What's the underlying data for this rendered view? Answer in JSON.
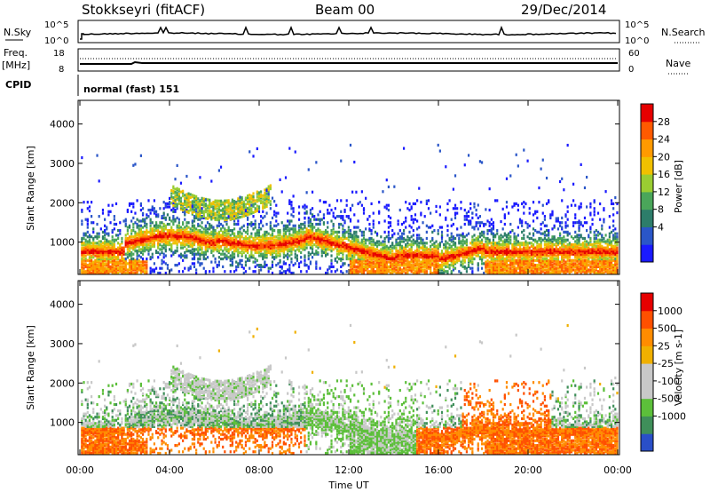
{
  "header": {
    "station": "Stokkseyri (fitACF)",
    "beam": "Beam 00",
    "date": "29/Dec/2014"
  },
  "top_panels": {
    "nsky_label": "N.Sky",
    "nsearch_label": "N.Search",
    "nsky_ticks": [
      "10^5",
      "10^0"
    ],
    "nsearch_ticks": [
      "10^5",
      "10^0"
    ],
    "freq_label": "Freq.",
    "freq_unit": "[MHz]",
    "freq_ticks": [
      "18",
      "8"
    ],
    "nave_label": "Nave",
    "nave_ticks": [
      "60",
      "0"
    ],
    "cpid_label": "CPID",
    "cpid_value": "normal (fast) 151"
  },
  "chart_data": [
    {
      "type": "heatmap",
      "name": "power",
      "ylabel": "Slant Range [km]",
      "ylim": [
        180,
        4600
      ],
      "yticks": [
        "4000",
        "3000",
        "2000",
        "1000"
      ],
      "xlim": [
        0,
        24
      ],
      "colorbar_label": "Power [dB]",
      "colorbar_ticks": [
        "28",
        "24",
        "20",
        "16",
        "12",
        "8",
        "4"
      ],
      "colorbar_colors": [
        "#1a1aff",
        "#2a56c8",
        "#2d7d6a",
        "#4aa65a",
        "#9acd32",
        "#f0c000",
        "#ff9a00",
        "#ff5a00",
        "#e60000"
      ]
    },
    {
      "type": "heatmap",
      "name": "velocity",
      "ylabel": "Slant Range [km]",
      "ylim": [
        180,
        4600
      ],
      "yticks": [
        "4000",
        "3000",
        "2000",
        "1000"
      ],
      "xlim": [
        0,
        24
      ],
      "colorbar_label": "Velocity [m s-1]",
      "colorbar_ticks": [
        "1000",
        "500",
        "25",
        "-25",
        "-100",
        "-500",
        "-1000"
      ],
      "colorbar_colors": [
        "#2a4fc8",
        "#3f8f5a",
        "#5cbf3a",
        "#c8c8c8",
        "#c8c8c8",
        "#f0b000",
        "#ff8c00",
        "#ff5000",
        "#e60000"
      ]
    }
  ],
  "xaxis": {
    "ticks": [
      "00:00",
      "04:00",
      "08:00",
      "12:00",
      "16:00",
      "20:00",
      "00:00"
    ],
    "label": "Time UT"
  }
}
